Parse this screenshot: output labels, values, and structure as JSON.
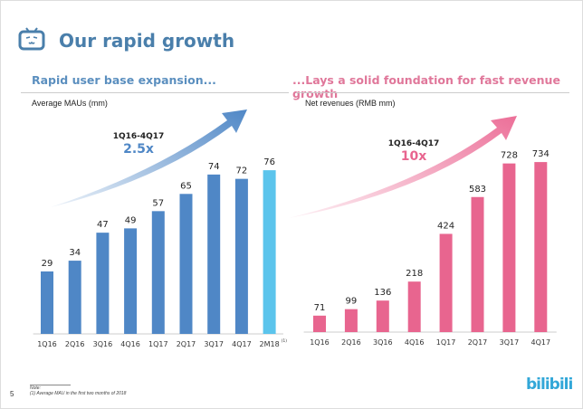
{
  "slide": {
    "title": "Our rapid growth",
    "page_number": "5",
    "brand": "bilibili",
    "note_label": "Note:",
    "note_text": "(1)   Average MAU in the first two months of 2018"
  },
  "chart_data": [
    {
      "type": "bar",
      "title": "Rapid user base expansion...",
      "ylabel": "Average MAUs (mm)",
      "categories": [
        "1Q16",
        "2Q16",
        "3Q16",
        "4Q16",
        "1Q17",
        "2Q17",
        "3Q17",
        "4Q17",
        "2M18"
      ],
      "footnote_marker": "(1)",
      "values": [
        29,
        34,
        47,
        49,
        57,
        65,
        74,
        72,
        76
      ],
      "ylim": [
        0,
        80
      ],
      "grid": false,
      "annotation": {
        "period": "1Q16-4Q17",
        "growth": "2.5x"
      },
      "colors": {
        "bar": "#4f87c6",
        "highlight": "#5bc4ec",
        "arrow": "#4f87c6",
        "growth": "#4f87c6"
      }
    },
    {
      "type": "bar",
      "title": "...Lays a solid foundation for fast revenue growth",
      "ylabel": "Net revenues (RMB mm)",
      "categories": [
        "1Q16",
        "2Q16",
        "3Q16",
        "4Q16",
        "1Q17",
        "2Q17",
        "3Q17",
        "4Q17"
      ],
      "values": [
        71,
        99,
        136,
        218,
        424,
        583,
        728,
        734
      ],
      "ylim": [
        0,
        750
      ],
      "grid": false,
      "annotation": {
        "period": "1Q16-4Q17",
        "growth": "10x"
      },
      "colors": {
        "bar": "#e8658f",
        "highlight": "#e8658f",
        "arrow": "#ec6f98",
        "growth": "#e8658f"
      }
    }
  ]
}
